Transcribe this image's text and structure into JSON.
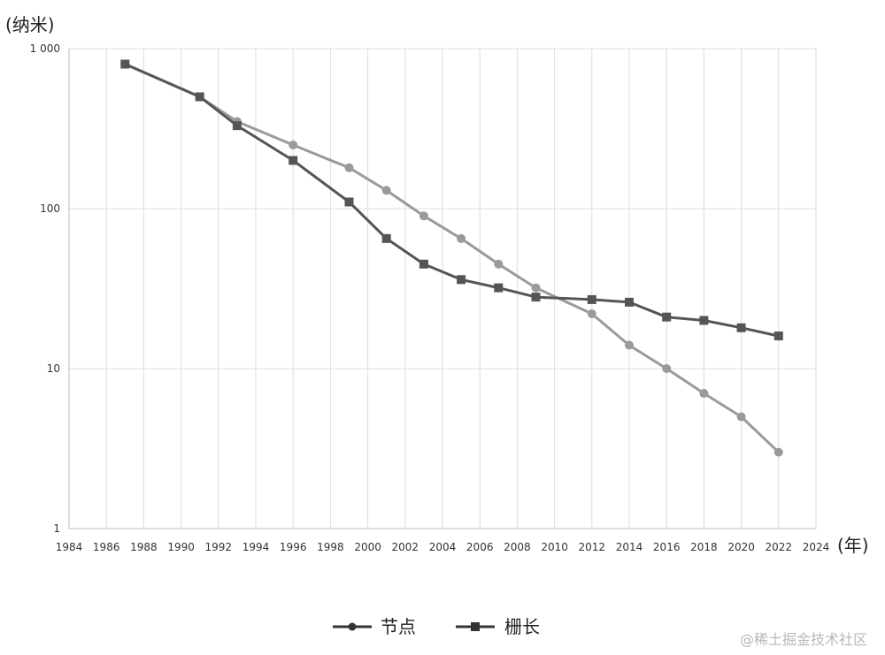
{
  "chart_data": {
    "type": "line",
    "y_scale": "log",
    "ylabel": "(纳米)",
    "xlabel": "(年)",
    "xlim": [
      1984,
      2024
    ],
    "ylim": [
      1,
      1000
    ],
    "x_ticks": [
      "1984",
      "1986",
      "1988",
      "1990",
      "1992",
      "1994",
      "1996",
      "1998",
      "2000",
      "2002",
      "2004",
      "2006",
      "2008",
      "2010",
      "2012",
      "2014",
      "2016",
      "2018",
      "2020",
      "2022",
      "2024"
    ],
    "y_ticks": [
      "1 000",
      "100",
      "10",
      "1"
    ],
    "grid": true,
    "legend_position": "bottom-center",
    "series": [
      {
        "name": "节点",
        "marker": "circle",
        "color": "#9a9a9a",
        "x": [
          1987,
          1991,
          1993,
          1996,
          1999,
          2001,
          2003,
          2005,
          2007,
          2009,
          2012,
          2014,
          2016,
          2018,
          2020,
          2022
        ],
        "y": [
          800,
          500,
          350,
          250,
          180,
          130,
          90,
          65,
          45,
          32,
          22,
          14,
          10,
          7,
          5,
          3
        ]
      },
      {
        "name": "栅长",
        "marker": "square",
        "color": "#555555",
        "x": [
          1987,
          1991,
          1993,
          1996,
          1999,
          2001,
          2003,
          2005,
          2007,
          2009,
          2012,
          2014,
          2016,
          2018,
          2020,
          2022
        ],
        "y": [
          800,
          500,
          330,
          200,
          110,
          65,
          45,
          36,
          32,
          28,
          27,
          26,
          21,
          20,
          18,
          16
        ]
      }
    ]
  },
  "watermark": "@稀土掘金技术社区"
}
